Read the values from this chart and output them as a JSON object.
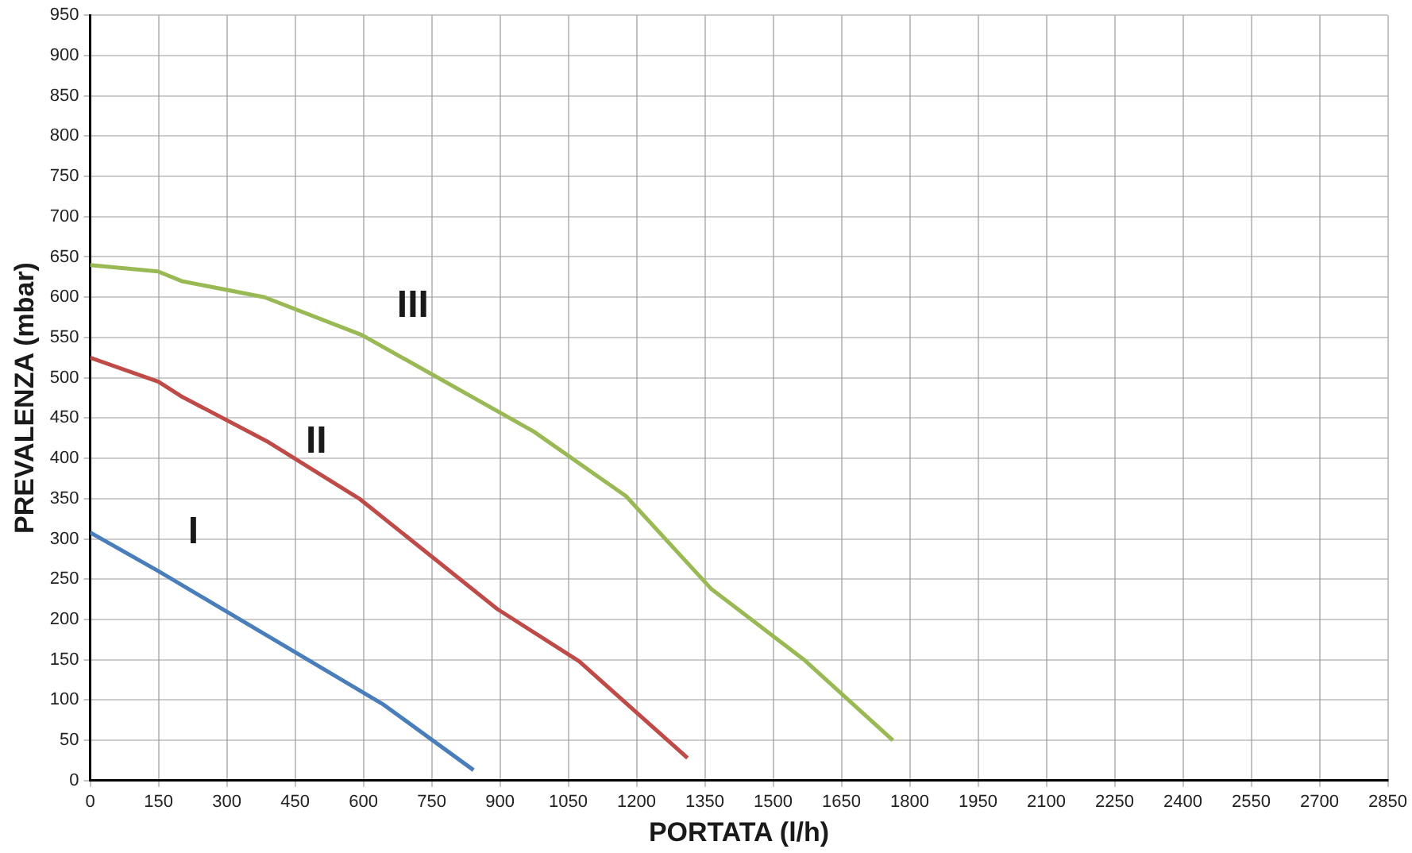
{
  "chart_data": {
    "type": "line",
    "xlabel": "PORTATA (l/h)",
    "ylabel": "PREVALENZA (mbar)",
    "xlim": [
      0,
      2850
    ],
    "xticks": [
      0,
      150,
      300,
      450,
      600,
      750,
      900,
      1050,
      1200,
      1350,
      1500,
      1650,
      1800,
      1950,
      2100,
      2250,
      2400,
      2550,
      2700,
      2850
    ],
    "ylim": [
      0,
      950
    ],
    "yticks": [
      0,
      50,
      100,
      150,
      200,
      250,
      300,
      350,
      400,
      450,
      500,
      550,
      600,
      650,
      700,
      750,
      800,
      850,
      900,
      950
    ],
    "grid": true,
    "legend": false,
    "marker": "none",
    "line_style": "solid",
    "series": [
      {
        "name": "I",
        "color": "#4a7ebb",
        "x": [
          0,
          150,
          645,
          842
        ],
        "values": [
          308,
          260,
          94,
          13
        ]
      },
      {
        "name": "II",
        "color": "#be4b48",
        "x": [
          0,
          150,
          200,
          392,
          591,
          894,
          1074,
          1312
        ],
        "values": [
          525,
          495,
          477,
          420,
          350,
          213,
          148,
          28
        ]
      },
      {
        "name": "III",
        "color": "#98b954",
        "x": [
          0,
          149,
          201,
          383,
          597,
          975,
          1177,
          1364,
          1568,
          1763
        ],
        "values": [
          640,
          632,
          620,
          600,
          553,
          433,
          353,
          238,
          150,
          50
        ]
      }
    ]
  }
}
